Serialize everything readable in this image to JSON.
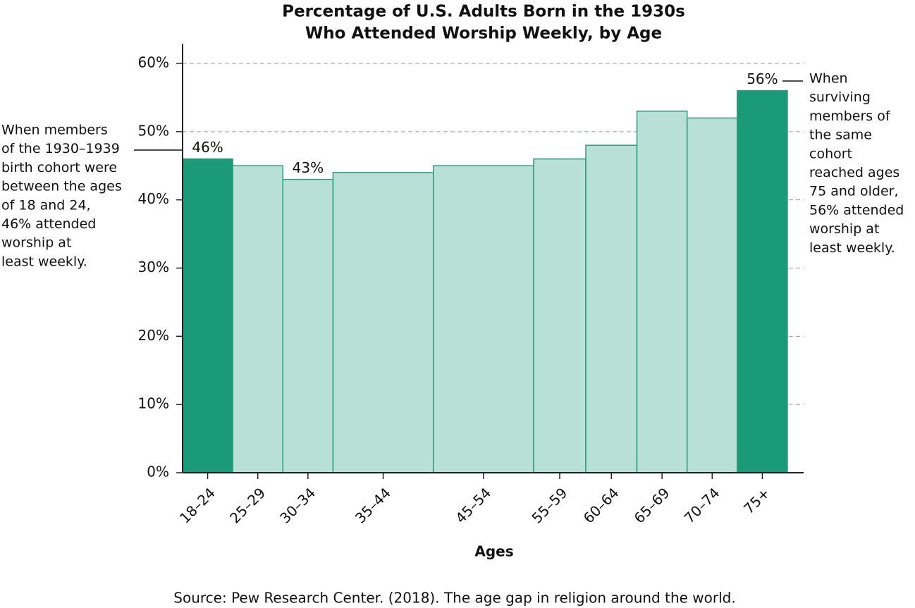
{
  "chart_data": {
    "type": "bar",
    "title": [
      "Percentage of U.S. Adults Born in the 1930s",
      "Who Attended Worship Weekly, by Age"
    ],
    "x_label": "Ages",
    "source": "Source: Pew Research Center. (2018). The age gap in religion around the world.",
    "categories": [
      "18–24",
      "25–29",
      "30–34",
      "35–44",
      "45–54",
      "55–59",
      "60–64",
      "65–69",
      "70–74",
      "75+"
    ],
    "values": [
      46,
      45,
      43,
      44,
      45,
      46,
      48,
      53,
      52,
      56
    ],
    "value_labels": [
      "46%",
      null,
      "43%",
      null,
      null,
      null,
      null,
      null,
      null,
      "56%"
    ],
    "colors": [
      "#1a9a79",
      "#b9e0d6",
      "#b9e0d6",
      "#b9e0d6",
      "#b9e0d6",
      "#b9e0d6",
      "#b9e0d6",
      "#b9e0d6",
      "#b9e0d6",
      "#1a9a79"
    ],
    "edge_color": "#2a9d7a",
    "ylim": [
      0,
      60
    ],
    "yticks": [
      {
        "value": 0,
        "label": "0%"
      },
      {
        "value": 10,
        "label": "10%"
      },
      {
        "value": 20,
        "label": "20%"
      },
      {
        "value": 30,
        "label": "30%"
      },
      {
        "value": 40,
        "label": "40%"
      },
      {
        "value": 50,
        "label": "50%"
      },
      {
        "value": 60,
        "label": "60%"
      }
    ],
    "grid": true,
    "annotations": [
      {
        "lines": [
          "When members",
          "of the 1930–1939",
          "birth cohort were",
          "between the ages",
          "of 18 and 24,",
          "46% attended",
          "worship at",
          "least weekly."
        ]
      },
      {
        "lines": [
          "When",
          "surviving",
          "members of",
          "the same",
          "cohort",
          "reached ages",
          "75 and older,",
          "56% attended",
          "worship at",
          "least weekly."
        ]
      }
    ]
  }
}
